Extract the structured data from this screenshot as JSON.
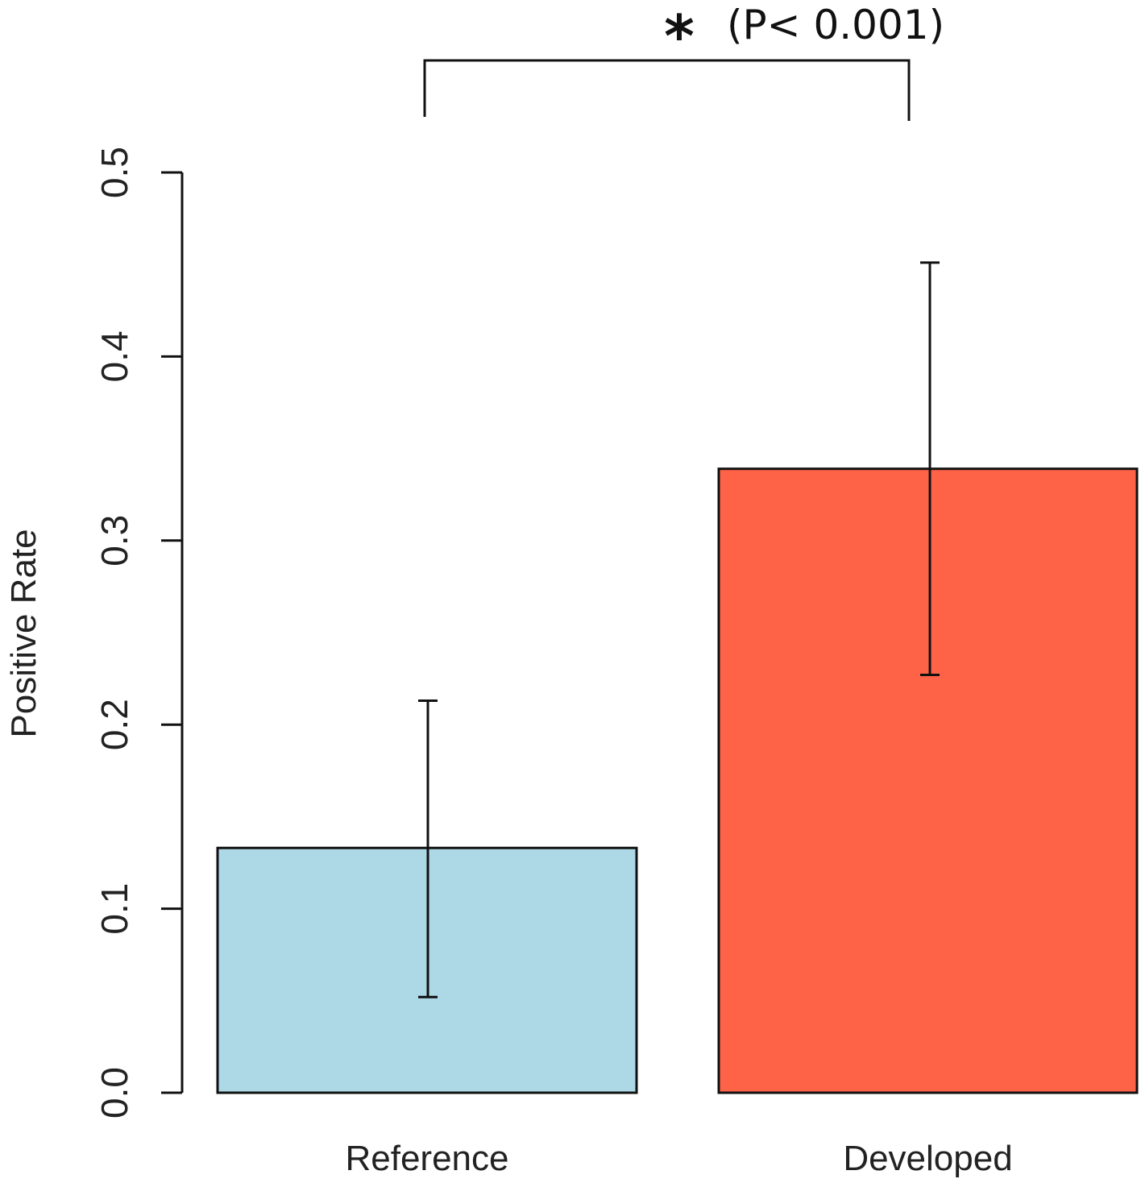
{
  "chart_data": {
    "type": "bar",
    "title": "",
    "xlabel": "",
    "ylabel": "Positive Rate",
    "ylim": [
      0,
      0.5
    ],
    "yticks": [
      0.0,
      0.1,
      0.2,
      0.3,
      0.4,
      0.5
    ],
    "ytick_labels": [
      "0.0",
      "0.1",
      "0.2",
      "0.3",
      "0.4",
      "0.5"
    ],
    "categories": [
      "Reference",
      "Developed"
    ],
    "values": [
      0.133,
      0.339
    ],
    "error_low": [
      0.052,
      0.227
    ],
    "error_high": [
      0.213,
      0.451
    ],
    "colors": [
      "#add8e6",
      "#ff6347"
    ],
    "grid": false,
    "annotation": {
      "star": "*",
      "text": "(P< 0.001)",
      "between": [
        "Reference",
        "Developed"
      ]
    }
  }
}
